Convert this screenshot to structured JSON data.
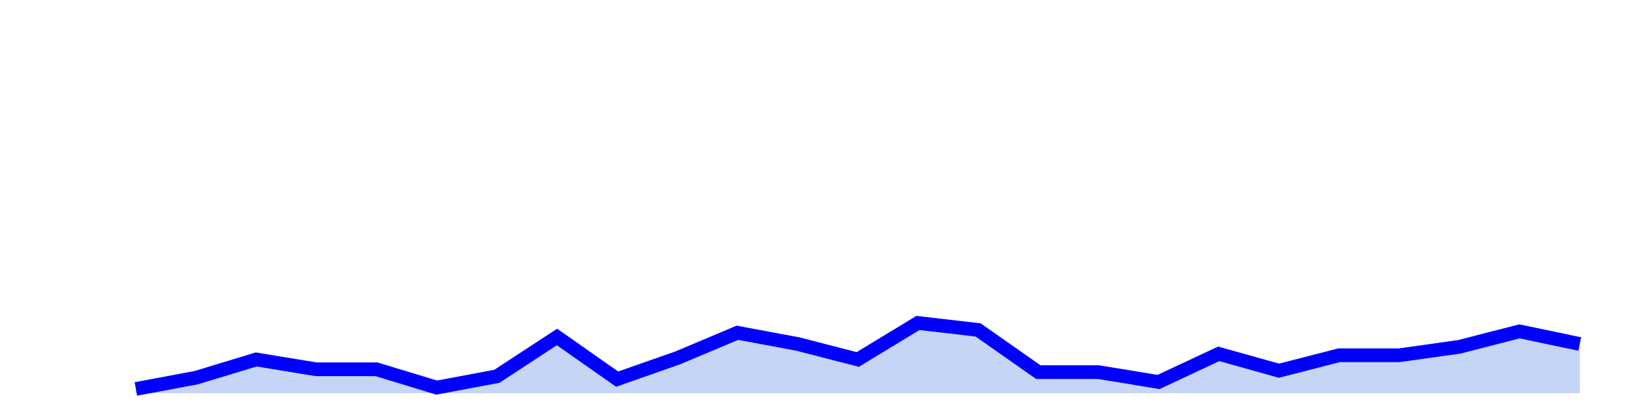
{
  "chart_data": {
    "type": "area",
    "x": [
      0,
      1,
      2,
      3,
      4,
      5,
      6,
      7,
      8,
      9,
      10,
      11,
      12,
      13,
      14,
      15,
      16,
      17,
      18,
      19,
      20,
      21,
      22,
      23,
      24
    ],
    "series": [
      {
        "values": [
          0.3,
          1.1,
          2.4,
          1.7,
          1.7,
          0.4,
          1.2,
          4.0,
          1.0,
          2.5,
          4.3,
          3.5,
          2.4,
          5.0,
          4.5,
          1.5,
          1.5,
          0.8,
          2.8,
          1.6,
          2.7,
          2.7,
          3.3,
          4.4,
          3.5
        ],
        "line_color": "#0000ff",
        "fill_color": "#c5d5f5"
      }
    ],
    "ylim": [
      0,
      27
    ],
    "grid": false,
    "legend": "none"
  }
}
